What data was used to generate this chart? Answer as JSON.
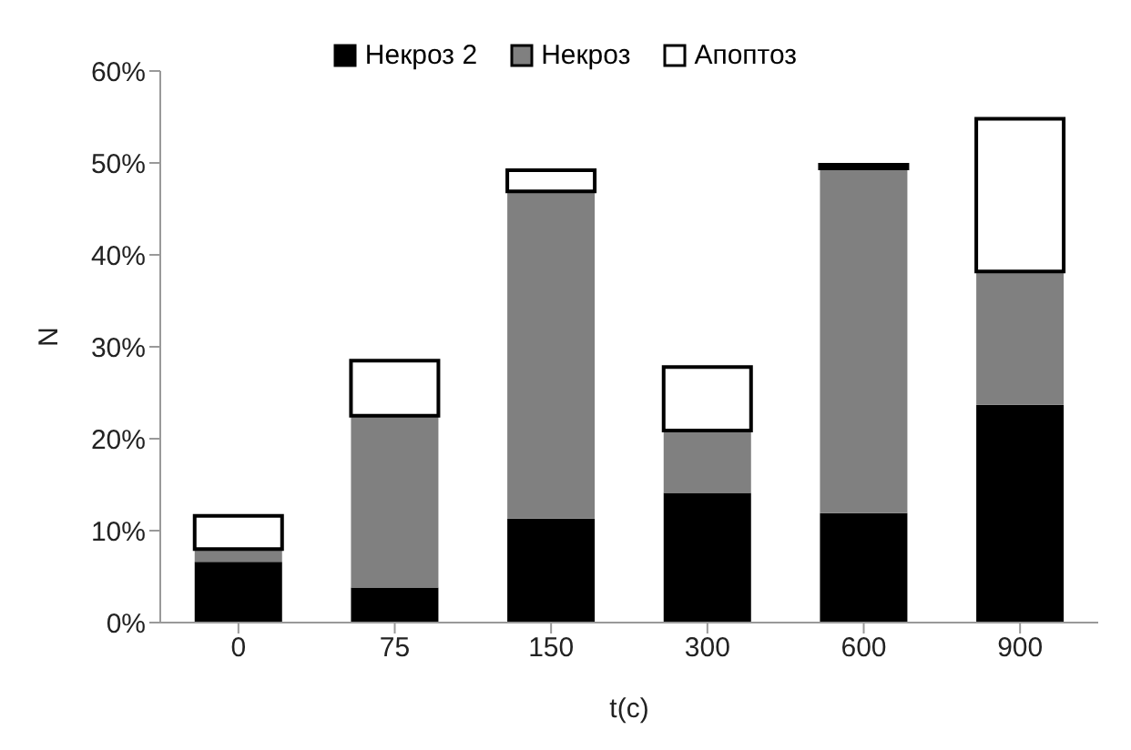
{
  "chart_data": {
    "type": "bar",
    "stacked": true,
    "xlabel": "t(c)",
    "ylabel": "N",
    "categories": [
      "0",
      "75",
      "150",
      "300",
      "600",
      "900"
    ],
    "series": [
      {
        "name": "Некроз 2",
        "color": "#000000",
        "values": [
          6.6,
          3.8,
          11.3,
          14.1,
          11.9,
          23.7
        ]
      },
      {
        "name": "Некроз",
        "color": "#808080",
        "values": [
          1.4,
          18.7,
          35.6,
          6.8,
          37.5,
          14.5
        ]
      },
      {
        "name": "Апоптоз",
        "color": "#ffffff",
        "values": [
          3.6,
          6.0,
          2.3,
          6.9,
          0.4,
          16.6
        ]
      }
    ],
    "ylim": [
      0,
      60
    ],
    "yticks": [
      {
        "value": 0,
        "label": "0%"
      },
      {
        "value": 10,
        "label": "10%"
      },
      {
        "value": 20,
        "label": "20%"
      },
      {
        "value": 30,
        "label": "30%"
      },
      {
        "value": 40,
        "label": "40%"
      },
      {
        "value": 50,
        "label": "50%"
      },
      {
        "value": 60,
        "label": "60%"
      }
    ],
    "grid": false,
    "legend": "top"
  }
}
